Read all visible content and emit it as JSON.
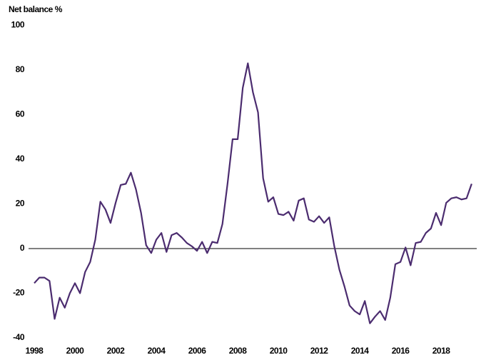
{
  "chart_data": {
    "type": "line",
    "y_axis_label": "Net balance %",
    "x": [
      1998,
      1998.25,
      1998.5,
      1998.75,
      1999,
      1999.25,
      1999.5,
      1999.75,
      2000,
      2000.25,
      2000.5,
      2000.75,
      2001,
      2001.25,
      2001.5,
      2001.75,
      2002,
      2002.25,
      2002.5,
      2002.75,
      2003,
      2003.25,
      2003.5,
      2003.75,
      2004,
      2004.25,
      2004.5,
      2004.75,
      2005,
      2005.25,
      2005.5,
      2005.75,
      2006,
      2006.25,
      2006.5,
      2006.75,
      2007,
      2007.25,
      2007.5,
      2007.75,
      2008,
      2008.25,
      2008.5,
      2008.75,
      2009,
      2009.25,
      2009.5,
      2009.75,
      2010,
      2010.25,
      2010.5,
      2010.75,
      2011,
      2011.25,
      2011.5,
      2011.75,
      2012,
      2012.25,
      2012.5,
      2012.75,
      2013,
      2013.25,
      2013.5,
      2013.75,
      2014,
      2014.25,
      2014.5,
      2014.75,
      2015,
      2015.25,
      2015.5,
      2015.75,
      2016,
      2016.25,
      2016.5,
      2016.75,
      2017,
      2017.25,
      2017.5,
      2017.75,
      2018,
      2018.25,
      2018.5,
      2018.75,
      2019,
      2019.25,
      2019.5
    ],
    "series": [
      {
        "color": "#4b2c6f",
        "values": [
          -15.5,
          -13,
          -13,
          -14.5,
          -31.5,
          -22,
          -26.5,
          -20,
          -15.5,
          -20,
          -10.5,
          -6,
          4,
          21,
          17.5,
          11.5,
          20.5,
          28.5,
          29,
          34,
          26.5,
          16,
          1.5,
          -2,
          4,
          7,
          -1.5,
          6,
          7,
          5,
          2.5,
          1,
          -1,
          3,
          -2,
          3,
          2.5,
          11,
          29,
          49,
          49,
          72,
          83,
          70,
          61,
          31.5,
          21,
          23,
          15.5,
          15,
          16.5,
          12.5,
          21.5,
          22.5,
          13,
          12,
          14.5,
          11.5,
          14,
          1,
          -9.5,
          -17,
          -25.5,
          -28,
          -29.5,
          -23.5,
          -33.5,
          -30.5,
          -28,
          -32,
          -22,
          -7,
          -6,
          0.5,
          -7.5,
          2.5,
          3,
          7,
          9,
          16,
          10.5,
          20.5,
          22.5,
          23,
          22,
          22.5,
          29
        ]
      }
    ],
    "xlim": [
      1998,
      2019.75
    ],
    "xticks": [
      1998,
      2000,
      2002,
      2004,
      2006,
      2008,
      2010,
      2012,
      2014,
      2016,
      2018
    ],
    "ylim": [
      -40,
      100
    ],
    "yticks": [
      -40,
      -20,
      0,
      20,
      40,
      60,
      80,
      100
    ]
  }
}
